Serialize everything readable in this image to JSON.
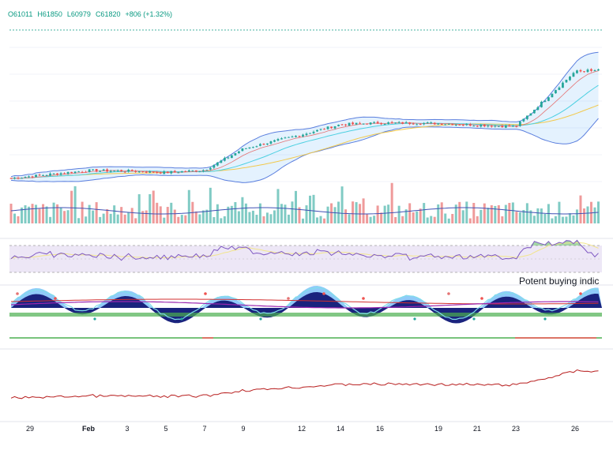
{
  "ohlc": {
    "open": "O61011",
    "high": "H61850",
    "low": "L60979",
    "close": "C61820",
    "change": "+806 (+1.32%)",
    "color": "#089981"
  },
  "annotation": "Potent buying indic",
  "colors": {
    "up": "#26a69a",
    "down": "#ef5350",
    "bb": "#5b7fde",
    "rsi": "#7e57c2",
    "osc_line": "#ff1744",
    "price_line": "#b71c1c"
  },
  "chart_data": [
    {
      "type": "candlestick",
      "panel": "price",
      "x_ticks": [
        "29",
        "Feb",
        "3",
        "5",
        "7",
        "9",
        "12",
        "14",
        "16",
        "19",
        "21",
        "23",
        "26"
      ],
      "close_trend": [
        {
          "x": "29",
          "y": 42000
        },
        {
          "x": "Feb",
          "y": 43100
        },
        {
          "x": "3",
          "y": 43000
        },
        {
          "x": "5",
          "y": 42700
        },
        {
          "x": "7",
          "y": 43200
        },
        {
          "x": "9",
          "y": 47200
        },
        {
          "x": "12",
          "y": 49900
        },
        {
          "x": "14",
          "y": 51800
        },
        {
          "x": "16",
          "y": 52100
        },
        {
          "x": "19",
          "y": 52000
        },
        {
          "x": "21",
          "y": 51700
        },
        {
          "x": "23",
          "y": 51400
        },
        {
          "x": "26",
          "y": 61820
        }
      ]
    },
    {
      "type": "bar",
      "panel": "volume"
    },
    {
      "type": "line",
      "panel": "rsi"
    },
    {
      "type": "area",
      "panel": "oscillator"
    },
    {
      "type": "line",
      "panel": "lower"
    }
  ]
}
